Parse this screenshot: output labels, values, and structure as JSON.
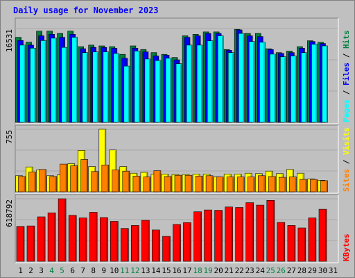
{
  "chart_data": {
    "type": "bar",
    "title": "Daily usage for November 2023",
    "days": [
      "1",
      "2",
      "3",
      "4",
      "5",
      "6",
      "7",
      "8",
      "9",
      "10",
      "11",
      "12",
      "13",
      "14",
      "15",
      "16",
      "17",
      "18",
      "19",
      "20",
      "21",
      "22",
      "23",
      "24",
      "25",
      "26",
      "27",
      "28",
      "29",
      "30",
      "31"
    ],
    "weekend_days": [
      "4",
      "5",
      "11",
      "12",
      "18",
      "19",
      "25",
      "26"
    ],
    "panels": [
      {
        "id": "hits-files-pages",
        "max_label": "16531",
        "ymax": 16531,
        "side_labels": [
          "Pages",
          "Files",
          "Hits"
        ],
        "series": [
          {
            "name": "Hits",
            "color": "#008040",
            "values": [
              14970,
              14130,
              16070,
              16070,
              15660,
              16070,
              13340,
              13600,
              13470,
              13340,
              11970,
              13470,
              12830,
              12280,
              11970,
              11420,
              15250,
              15520,
              15930,
              15930,
              12830,
              16390,
              15660,
              15660,
              12970,
              12280,
              12560,
              13340,
              14380,
              14110,
              null
            ]
          },
          {
            "name": "Files",
            "color": "#0000ff",
            "values": [
              14410,
              13600,
              15250,
              15520,
              14970,
              15520,
              12970,
              13200,
              13200,
              13070,
              11290,
              13070,
              12420,
              11690,
              11840,
              11010,
              14970,
              15250,
              15660,
              15660,
              12700,
              16290,
              15250,
              15110,
              12830,
              12140,
              12280,
              13070,
              14240,
              13880,
              null
            ]
          },
          {
            "name": "Pages",
            "color": "#00ffff",
            "values": [
              13600,
              13070,
              14410,
              14830,
              13200,
              14970,
              12280,
              12420,
              12420,
              12140,
              9910,
              12560,
              11150,
              10880,
              11290,
              10330,
              13600,
              13600,
              14380,
              15250,
              12280,
              15660,
              14240,
              14110,
              12010,
              11560,
              11690,
              12280,
              13750,
              13470,
              null
            ]
          }
        ]
      },
      {
        "id": "sites-visits",
        "max_label": "755",
        "ymax": 755,
        "side_labels": [
          "Sites",
          "Visits"
        ],
        "series": [
          {
            "name": "Visits",
            "color": "#ffff00",
            "values": [
              195,
              300,
              265,
              195,
              205,
              340,
              500,
              305,
              755,
              505,
              305,
              225,
              235,
              215,
              215,
              210,
              210,
              215,
              215,
              180,
              215,
              215,
              225,
              220,
              250,
              220,
              270,
              225,
              155,
              140,
              null
            ]
          },
          {
            "name": "Sites",
            "color": "#ff8000",
            "values": [
              185,
              240,
              270,
              185,
              335,
              315,
              390,
              245,
              325,
              265,
              250,
              190,
              180,
              255,
              185,
              200,
              200,
              190,
              195,
              180,
              180,
              180,
              180,
              195,
              185,
              175,
              180,
              150,
              150,
              135,
              null
            ]
          }
        ]
      },
      {
        "id": "kbytes",
        "max_label": "618792",
        "ymax": 618792,
        "side_labels": [
          "KBytes"
        ],
        "series": [
          {
            "name": "KBytes",
            "color": "#ff0000",
            "values": [
              345000,
              350000,
              440000,
              480000,
              618792,
              455000,
              430000,
              485000,
              433000,
              395000,
              325000,
              355000,
              405000,
              310000,
              247000,
              365000,
              383000,
              490000,
              508000,
              505000,
              538000,
              533000,
              580000,
              556000,
              603000,
              385000,
              355000,
              330000,
              430000,
              515000,
              null
            ]
          }
        ]
      }
    ]
  }
}
